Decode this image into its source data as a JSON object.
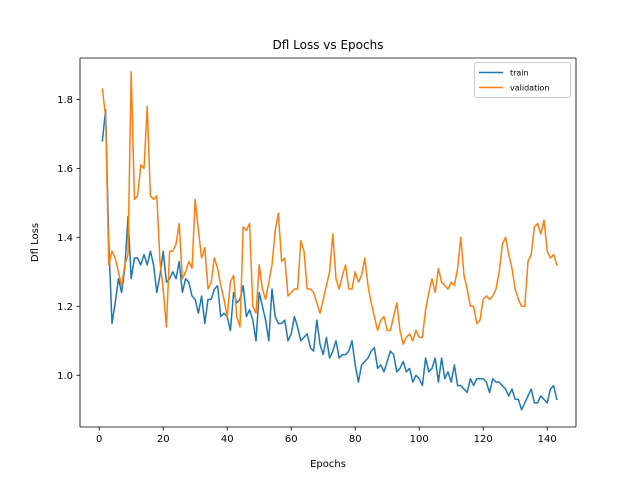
{
  "chart_data": {
    "type": "line",
    "title": "Dfl Loss vs Epochs",
    "xlabel": "Epochs",
    "ylabel": "Dfl Loss",
    "xlim": [
      -6,
      149
    ],
    "ylim": [
      0.85,
      1.92
    ],
    "xticks": [
      0,
      20,
      40,
      60,
      80,
      100,
      120,
      140
    ],
    "yticks": [
      1.0,
      1.2,
      1.4,
      1.6,
      1.8
    ],
    "ytick_labels": [
      "1.0",
      "1.2",
      "1.4",
      "1.6",
      "1.8"
    ],
    "grid": false,
    "legend_position": "top-right",
    "series": [
      {
        "name": "train",
        "color": "#1f77b4",
        "x": [
          1,
          2,
          3,
          4,
          5,
          6,
          7,
          8,
          9,
          10,
          11,
          12,
          13,
          14,
          15,
          16,
          17,
          18,
          19,
          20,
          21,
          22,
          23,
          24,
          25,
          26,
          27,
          28,
          29,
          30,
          31,
          32,
          33,
          34,
          35,
          36,
          37,
          38,
          39,
          40,
          41,
          42,
          43,
          44,
          45,
          46,
          47,
          48,
          49,
          50,
          51,
          52,
          53,
          54,
          55,
          56,
          57,
          58,
          59,
          60,
          61,
          62,
          63,
          64,
          65,
          66,
          67,
          68,
          69,
          70,
          71,
          72,
          73,
          74,
          75,
          76,
          77,
          78,
          79,
          80,
          81,
          82,
          83,
          84,
          85,
          86,
          87,
          88,
          89,
          90,
          91,
          92,
          93,
          94,
          95,
          96,
          97,
          98,
          99,
          100,
          101,
          102,
          103,
          104,
          105,
          106,
          107,
          108,
          109,
          110,
          111,
          112,
          113,
          114,
          115,
          116,
          117,
          118,
          119,
          120,
          121,
          122,
          123,
          124,
          125,
          126,
          127,
          128,
          129,
          130,
          131,
          132,
          133,
          134,
          135,
          136,
          137,
          138,
          139,
          140,
          141,
          142,
          143
        ],
        "values": [
          1.68,
          1.77,
          1.38,
          1.15,
          1.21,
          1.28,
          1.24,
          1.31,
          1.46,
          1.28,
          1.34,
          1.34,
          1.32,
          1.35,
          1.32,
          1.36,
          1.32,
          1.24,
          1.29,
          1.36,
          1.27,
          1.28,
          1.3,
          1.28,
          1.33,
          1.24,
          1.28,
          1.27,
          1.23,
          1.22,
          1.18,
          1.23,
          1.15,
          1.22,
          1.22,
          1.25,
          1.26,
          1.17,
          1.18,
          1.17,
          1.13,
          1.24,
          1.21,
          1.22,
          1.26,
          1.17,
          1.19,
          1.16,
          1.1,
          1.24,
          1.2,
          1.16,
          1.1,
          1.25,
          1.17,
          1.15,
          1.15,
          1.16,
          1.1,
          1.12,
          1.17,
          1.14,
          1.1,
          1.11,
          1.12,
          1.08,
          1.07,
          1.16,
          1.09,
          1.06,
          1.11,
          1.05,
          1.07,
          1.1,
          1.05,
          1.06,
          1.06,
          1.07,
          1.1,
          1.03,
          0.98,
          1.03,
          1.04,
          1.05,
          1.07,
          1.08,
          1.02,
          1.03,
          1.01,
          1.04,
          1.07,
          1.06,
          1.01,
          1.02,
          1.04,
          1.01,
          1.02,
          0.98,
          1.0,
          0.99,
          0.97,
          1.05,
          1.01,
          1.02,
          1.05,
          0.98,
          1.05,
          0.99,
          1.01,
          0.98,
          1.03,
          0.97,
          0.97,
          0.96,
          0.95,
          0.99,
          0.97,
          0.99,
          0.99,
          0.99,
          0.98,
          0.95,
          0.99,
          0.98,
          0.98,
          0.97,
          0.96,
          0.94,
          0.96,
          0.93,
          0.93,
          0.9,
          0.92,
          0.94,
          0.96,
          0.92,
          0.92,
          0.94,
          0.93,
          0.92,
          0.96,
          0.97,
          0.93
        ]
      },
      {
        "name": "validation",
        "color": "#ff7f0e",
        "x": [
          1,
          2,
          3,
          4,
          5,
          6,
          7,
          8,
          9,
          10,
          11,
          12,
          13,
          14,
          15,
          16,
          17,
          18,
          19,
          20,
          21,
          22,
          23,
          24,
          25,
          26,
          27,
          28,
          29,
          30,
          31,
          32,
          33,
          34,
          35,
          36,
          37,
          38,
          39,
          40,
          41,
          42,
          43,
          44,
          45,
          46,
          47,
          48,
          49,
          50,
          51,
          52,
          53,
          54,
          55,
          56,
          57,
          58,
          59,
          60,
          61,
          62,
          63,
          64,
          65,
          66,
          67,
          68,
          69,
          70,
          71,
          72,
          73,
          74,
          75,
          76,
          77,
          78,
          79,
          80,
          81,
          82,
          83,
          84,
          85,
          86,
          87,
          88,
          89,
          90,
          91,
          92,
          93,
          94,
          95,
          96,
          97,
          98,
          99,
          100,
          101,
          102,
          103,
          104,
          105,
          106,
          107,
          108,
          109,
          110,
          111,
          112,
          113,
          114,
          115,
          116,
          117,
          118,
          119,
          120,
          121,
          122,
          123,
          124,
          125,
          126,
          127,
          128,
          129,
          130,
          131,
          132,
          133,
          134,
          135,
          136,
          137,
          138,
          139,
          140,
          141,
          142,
          143
        ],
        "values": [
          1.83,
          1.75,
          1.32,
          1.36,
          1.34,
          1.3,
          1.26,
          1.32,
          1.35,
          1.88,
          1.51,
          1.52,
          1.61,
          1.6,
          1.78,
          1.52,
          1.51,
          1.52,
          1.33,
          1.25,
          1.14,
          1.36,
          1.36,
          1.38,
          1.44,
          1.28,
          1.3,
          1.33,
          1.31,
          1.51,
          1.42,
          1.34,
          1.37,
          1.25,
          1.27,
          1.34,
          1.31,
          1.26,
          1.22,
          1.17,
          1.27,
          1.29,
          1.17,
          1.14,
          1.43,
          1.42,
          1.44,
          1.2,
          1.18,
          1.32,
          1.25,
          1.22,
          1.27,
          1.32,
          1.42,
          1.47,
          1.33,
          1.34,
          1.23,
          1.24,
          1.25,
          1.25,
          1.39,
          1.36,
          1.25,
          1.25,
          1.24,
          1.21,
          1.18,
          1.22,
          1.26,
          1.3,
          1.41,
          1.28,
          1.25,
          1.29,
          1.32,
          1.25,
          1.25,
          1.3,
          1.27,
          1.29,
          1.34,
          1.26,
          1.21,
          1.17,
          1.13,
          1.16,
          1.17,
          1.13,
          1.13,
          1.17,
          1.21,
          1.13,
          1.09,
          1.11,
          1.12,
          1.1,
          1.13,
          1.11,
          1.11,
          1.19,
          1.24,
          1.28,
          1.24,
          1.31,
          1.27,
          1.26,
          1.25,
          1.27,
          1.26,
          1.31,
          1.4,
          1.29,
          1.25,
          1.2,
          1.2,
          1.15,
          1.16,
          1.22,
          1.23,
          1.22,
          1.23,
          1.25,
          1.3,
          1.38,
          1.4,
          1.35,
          1.31,
          1.25,
          1.22,
          1.2,
          1.2,
          1.33,
          1.35,
          1.43,
          1.44,
          1.41,
          1.45,
          1.36,
          1.34,
          1.35,
          1.32
        ]
      }
    ]
  }
}
